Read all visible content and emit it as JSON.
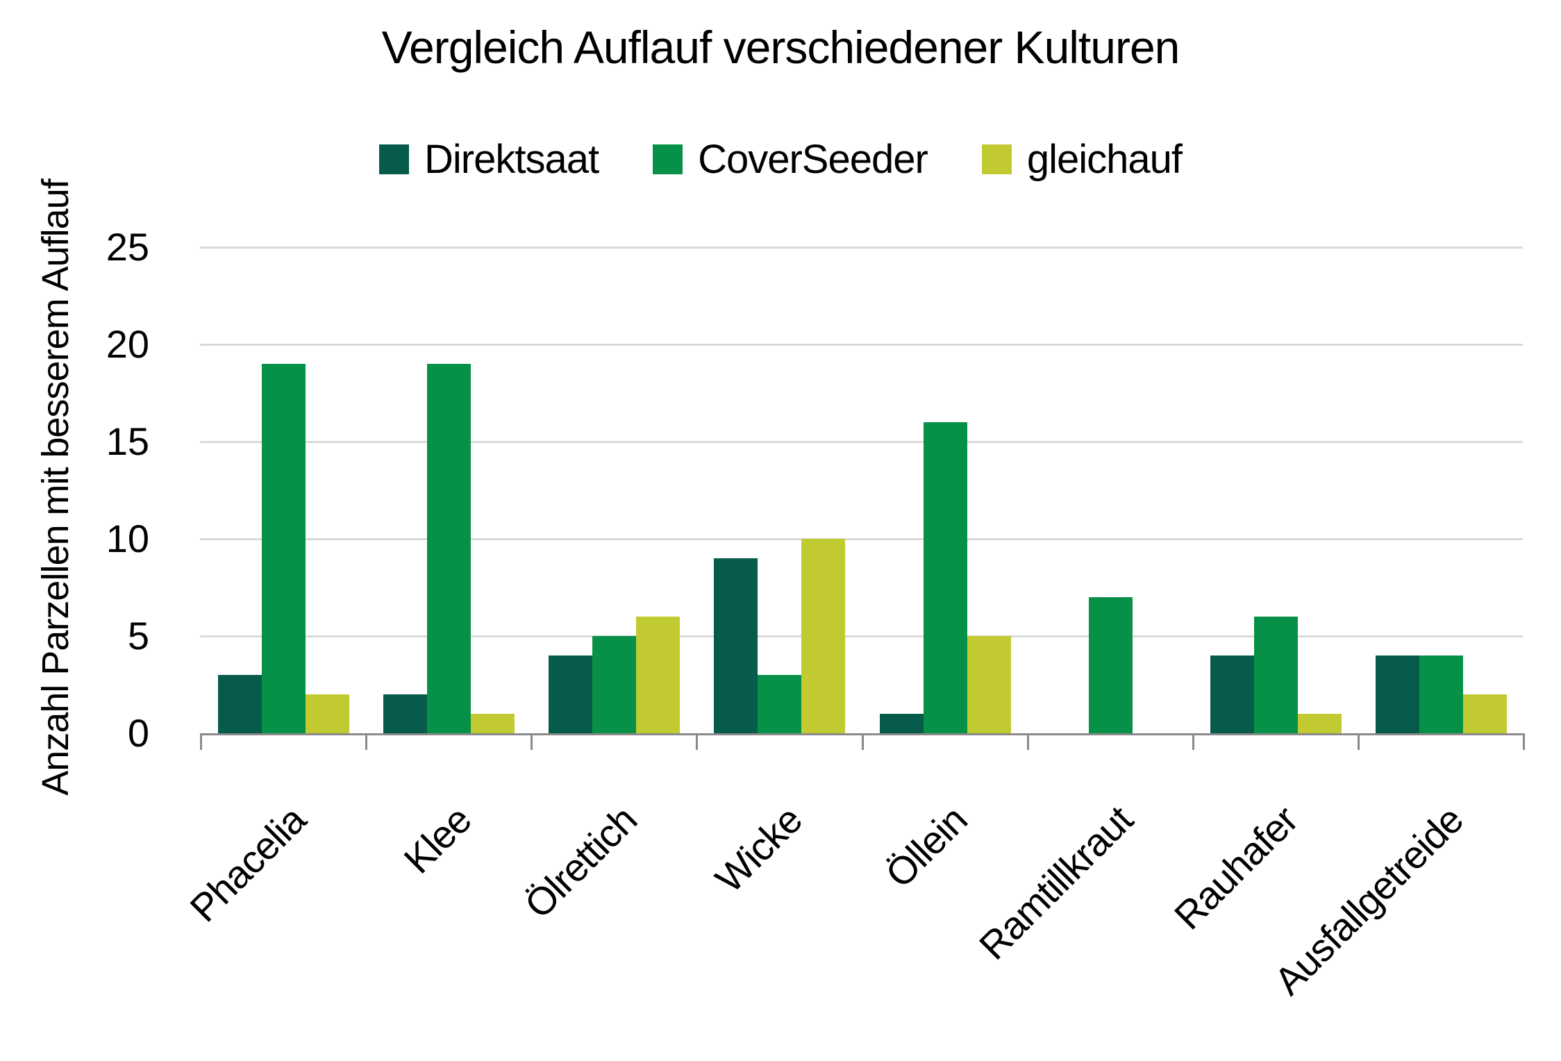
{
  "chart_data": {
    "type": "bar",
    "title": "Vergleich Auflauf verschiedener Kulturen",
    "ylabel": "Anzahl Parzellen mit besserem Auflauf",
    "xlabel": "",
    "categories": [
      "Phacelia",
      "Klee",
      "Ölrettich",
      "Wicke",
      "Öllein",
      "Ramtillkraut",
      "Rauhafer",
      "Ausfallgetreide"
    ],
    "series": [
      {
        "name": "Direktsaat",
        "color": "#065b4a",
        "values": [
          3,
          2,
          4,
          9,
          1,
          0,
          4,
          4
        ]
      },
      {
        "name": "CoverSeeder",
        "color": "#079148",
        "values": [
          19,
          19,
          5,
          3,
          16,
          7,
          6,
          4
        ]
      },
      {
        "name": "gleichauf",
        "color": "#c2ca32",
        "values": [
          2,
          1,
          6,
          10,
          5,
          0,
          1,
          2
        ]
      }
    ],
    "ylim": [
      0,
      25
    ],
    "yticks": [
      0,
      5,
      10,
      15,
      20,
      25
    ],
    "grid": "horizontal-gridlines-on",
    "legend_position": "top-center",
    "colors": {
      "gridline": "#d9d9d9",
      "axis": "#8a8a8a",
      "text": "#000000",
      "background": "#ffffff"
    }
  }
}
